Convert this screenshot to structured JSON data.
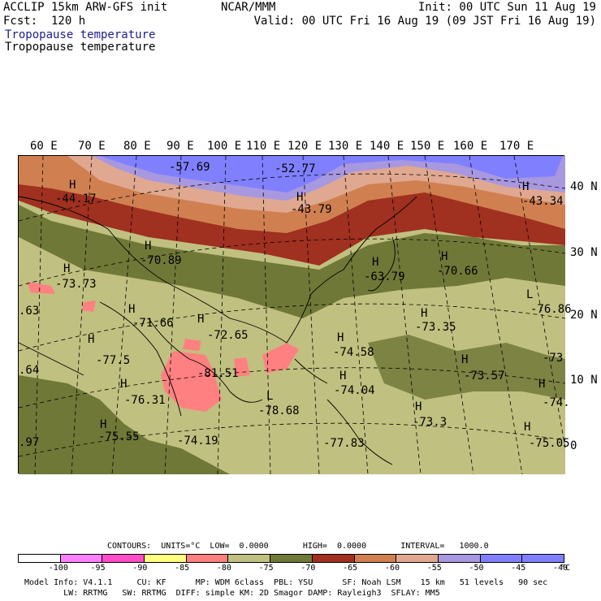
{
  "header": {
    "left1": "ACCLIP 15km ARW-GFS init",
    "left2": "Fcst:  120 h",
    "center": "NCAR/MMM",
    "right1": "Init: 00 UTC Sun 11 Aug 19",
    "right2": "Valid: 00 UTC Fri 16 Aug 19 (09 JST Fri 16 Aug 19)",
    "title_blue": "Tropopause temperature",
    "title_black": "Tropopause temperature"
  },
  "lon_labels": [
    "60 E",
    "70 E",
    "80 E",
    "90 E",
    "100 E",
    "110 E",
    "120 E",
    "130 E",
    "140 E",
    "150 E",
    "160 E",
    "170 E"
  ],
  "lat_labels": [
    "40 N",
    "30 N",
    "20 N",
    "10 N",
    "0"
  ],
  "map_labels": [
    {
      "type": "H",
      "value": "-44.17"
    },
    {
      "type": "",
      "value": "-57.69"
    },
    {
      "type": "",
      "value": "-52.77"
    },
    {
      "type": "H",
      "value": "-43.79"
    },
    {
      "type": "H",
      "value": "-43.34"
    },
    {
      "type": "H",
      "value": "-70.89"
    },
    {
      "type": "H",
      "value": "-73.73"
    },
    {
      "type": "H",
      "value": "-63.79"
    },
    {
      "type": "H",
      "value": "-70.66"
    },
    {
      "type": "",
      "value": ".63"
    },
    {
      "type": "H",
      "value": "-71.66"
    },
    {
      "type": "H",
      "value": "-72.65"
    },
    {
      "type": "H",
      "value": "-73.35"
    },
    {
      "type": "L",
      "value": "-76.86"
    },
    {
      "type": "H",
      "value": "-77.5"
    },
    {
      "type": "H",
      "value": "-74.58"
    },
    {
      "type": "H",
      "value": "-73"
    },
    {
      "type": "",
      "value": "-81.51"
    },
    {
      "type": "H",
      "value": "-73.57"
    },
    {
      "type": "",
      "value": ".64"
    },
    {
      "type": "H",
      "value": "-74.04"
    },
    {
      "type": "H",
      "value": "-76.31"
    },
    {
      "type": "L",
      "value": "-78.68"
    },
    {
      "type": "H",
      "value": "-74."
    },
    {
      "type": "H",
      "value": "-73.3"
    },
    {
      "type": "H",
      "value": "-75.55"
    },
    {
      "type": "",
      "value": "-74.19"
    },
    {
      "type": "",
      "value": "-77.83"
    },
    {
      "type": "H",
      "value": "-75.05"
    },
    {
      "type": "",
      "value": ".97"
    }
  ],
  "contours": {
    "label": "CONTOURS:  UNITS=°C  LOW=  0.0000       HIGH=  0.0000       INTERVAL=   1000.0"
  },
  "legend": {
    "colors": [
      "#ffffff",
      "#ff80ff",
      "#ff4cc8",
      "#ffff80",
      "#ff8080",
      "#c0c080",
      "#707838",
      "#a03020",
      "#d08050",
      "#e0a890",
      "#a898e0",
      "#8080ff",
      "#8080ff"
    ],
    "ticks": [
      "-100",
      "-95",
      "-90",
      "-85",
      "-80",
      "-75",
      "-70",
      "-65",
      "-60",
      "-55",
      "-50",
      "-45",
      "-40"
    ],
    "unit": "°C"
  },
  "footer": {
    "line1": "Model Info: V4.1.1     CU: KF      MP: WDM 6class  PBL: YSU      SF: Noah LSM    15 km   51 levels   90 sec",
    "line2": "        LW: RRTMG   SW: RRTMG  DIFF: simple KM: 2D Smagor DAMP: Rayleigh3  SFLAY: MM5"
  },
  "map_colors": {
    "blue": "#8080ff",
    "lavender": "#a898e0",
    "pink_tan": "#e0a890",
    "orange": "#d08050",
    "brown_red": "#a03020",
    "olive_dark": "#707838",
    "olive_light": "#c0c080",
    "salmon": "#ff8080"
  }
}
